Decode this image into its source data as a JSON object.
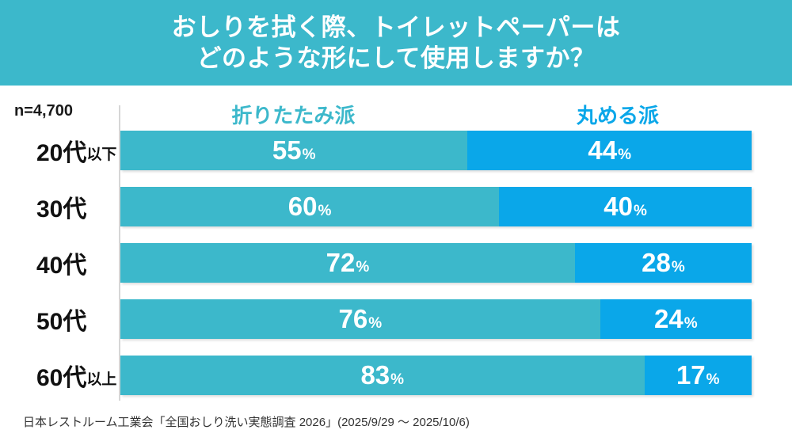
{
  "header": {
    "title_line1": "おしりを拭く際、トイレットペーパーは",
    "title_line2": "どのような形にして使用しますか？"
  },
  "sample_size_label": "n=4,700",
  "legend": {
    "fold_label": "折りたたみ派",
    "roll_label": "丸める派"
  },
  "chart_data": {
    "type": "bar",
    "orientation": "horizontal_stacked",
    "title": "おしりを拭く際、トイレットペーパーはどのような形にして使用しますか？",
    "sample_size": "n=4,700",
    "unit_suffix": "%",
    "xlim": [
      0,
      100
    ],
    "grid": false,
    "legend_position": "top",
    "categories": [
      {
        "main": "20代",
        "suffix": "以下",
        "full": "20代以下"
      },
      {
        "main": "30代",
        "suffix": "",
        "full": "30代"
      },
      {
        "main": "40代",
        "suffix": "",
        "full": "40代"
      },
      {
        "main": "50代",
        "suffix": "",
        "full": "50代"
      },
      {
        "main": "60代",
        "suffix": "以上",
        "full": "60代以上"
      }
    ],
    "series": [
      {
        "name": "折りたたみ派",
        "color": "#3cb8cb",
        "values": [
          55,
          60,
          72,
          76,
          83
        ]
      },
      {
        "name": "丸める派",
        "color": "#0aa7e9",
        "values": [
          44,
          40,
          28,
          24,
          17
        ]
      }
    ]
  },
  "footer": {
    "source": "日本レストルーム工業会「全国おしり洗い実態調査 2026」(2025/9/29 ～ 2025/10/6)"
  },
  "colors": {
    "header_bg": "#3cb8cb",
    "fold": "#3cb8cb",
    "roll": "#0aa7e9",
    "axis_line": "#d6d6d6",
    "value_text": "#ffffff"
  }
}
